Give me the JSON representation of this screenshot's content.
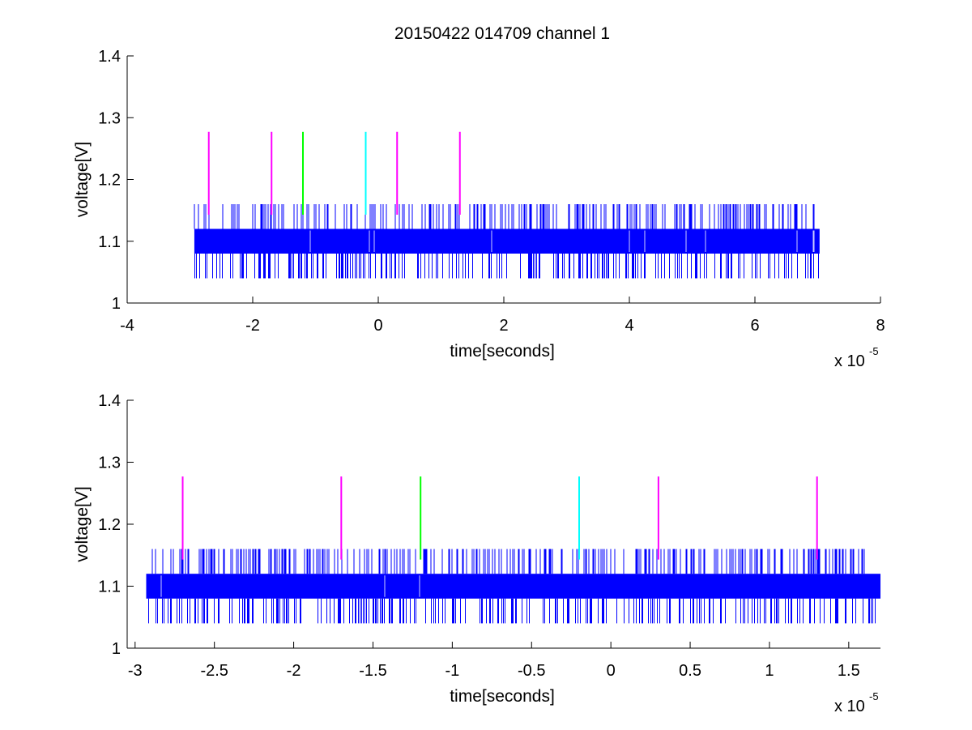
{
  "title": "20150422 014709 channel 1",
  "chart_data": [
    {
      "type": "line",
      "xlabel": "time[seconds]",
      "ylabel": "voltage[V]",
      "x_multiplier_base": "x 10",
      "x_multiplier_exp": "-5",
      "xlim": [
        -4,
        8
      ],
      "ylim": [
        1,
        1.4
      ],
      "xticks": [
        -4,
        -2,
        0,
        2,
        4,
        6,
        8
      ],
      "xtick_labels": [
        "-4",
        "-2",
        "0",
        "2",
        "4",
        "6",
        "8"
      ],
      "yticks": [
        1,
        1.1,
        1.2,
        1.3,
        1.4
      ],
      "ytick_labels": [
        "1",
        "1.1",
        "1.2",
        "1.3",
        "1.4"
      ],
      "signal": {
        "color": "#0000ff",
        "x_start": -2.93,
        "x_end": 7.03,
        "band_low": 1.08,
        "band_high": 1.12,
        "spike_high": 1.16,
        "spike_low": 1.04
      },
      "markers": [
        {
          "x": -2.7,
          "color": "#ff00ff",
          "y_low": 1.143,
          "y_high": 1.277
        },
        {
          "x": -1.7,
          "color": "#ff00ff",
          "y_low": 1.143,
          "y_high": 1.277
        },
        {
          "x": -1.2,
          "color": "#00ff00",
          "y_low": 1.143,
          "y_high": 1.277
        },
        {
          "x": -0.2,
          "color": "#00ffff",
          "y_low": 1.143,
          "y_high": 1.277
        },
        {
          "x": 0.3,
          "color": "#ff00ff",
          "y_low": 1.143,
          "y_high": 1.277
        },
        {
          "x": 1.3,
          "color": "#ff00ff",
          "y_low": 1.143,
          "y_high": 1.277
        }
      ]
    },
    {
      "type": "line",
      "xlabel": "time[seconds]",
      "ylabel": "voltage[V]",
      "x_multiplier_base": "x 10",
      "x_multiplier_exp": "-5",
      "xlim": [
        -3.05,
        1.7
      ],
      "ylim": [
        1,
        1.4
      ],
      "xticks": [
        -3,
        -2.5,
        -2,
        -1.5,
        -1,
        -0.5,
        0,
        0.5,
        1,
        1.5
      ],
      "xtick_labels": [
        "-3",
        "-2.5",
        "-2",
        "-1.5",
        "-1",
        "-0.5",
        "0",
        "0.5",
        "1",
        "1.5"
      ],
      "yticks": [
        1,
        1.1,
        1.2,
        1.3,
        1.4
      ],
      "ytick_labels": [
        "1",
        "1.1",
        "1.2",
        "1.3",
        "1.4"
      ],
      "signal": {
        "color": "#0000ff",
        "x_start": -2.93,
        "x_end": 1.7,
        "band_low": 1.08,
        "band_high": 1.12,
        "spike_high": 1.16,
        "spike_low": 1.04
      },
      "markers": [
        {
          "x": -2.7,
          "color": "#ff00ff",
          "y_low": 1.143,
          "y_high": 1.277
        },
        {
          "x": -1.7,
          "color": "#ff00ff",
          "y_low": 1.143,
          "y_high": 1.277
        },
        {
          "x": -1.2,
          "color": "#00ff00",
          "y_low": 1.143,
          "y_high": 1.277
        },
        {
          "x": -0.2,
          "color": "#00ffff",
          "y_low": 1.143,
          "y_high": 1.277
        },
        {
          "x": 0.3,
          "color": "#ff00ff",
          "y_low": 1.143,
          "y_high": 1.277
        },
        {
          "x": 1.3,
          "color": "#ff00ff",
          "y_low": 1.143,
          "y_high": 1.277
        }
      ]
    }
  ]
}
